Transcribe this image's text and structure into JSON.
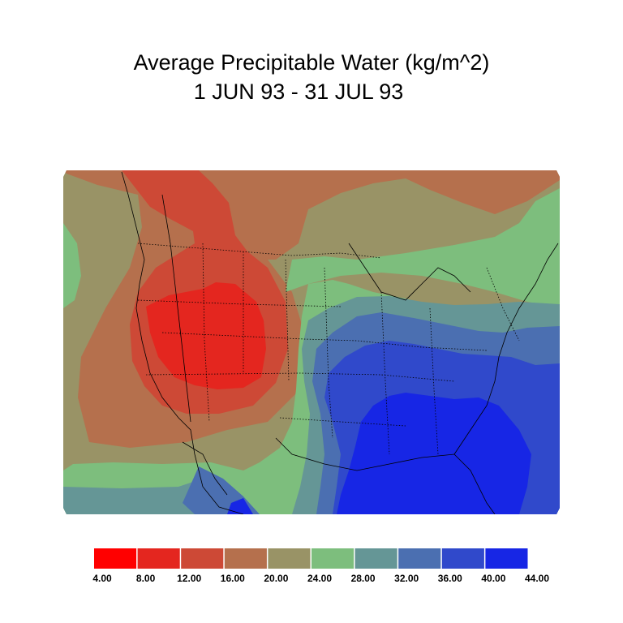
{
  "title": {
    "line1": "Average Precipitable Water (kg/m^2)",
    "line2": "1 JUN 93 - 31 JUL 93"
  },
  "colorbar": {
    "levels": [
      "4.00",
      "8.00",
      "12.00",
      "16.00",
      "20.00",
      "24.00",
      "28.00",
      "32.00",
      "36.00",
      "40.00",
      "44.00"
    ],
    "colors": [
      "#ff0000",
      "#e4261f",
      "#cd4936",
      "#b5704d",
      "#999366",
      "#7dbe7d",
      "#659696",
      "#4b6fb1",
      "#3049cb",
      "#1726e5"
    ]
  },
  "map_colors": {
    "band_16": "#b5704d",
    "band_12": "#cd4936",
    "band_8": "#e4261f",
    "band_20": "#999366",
    "band_24": "#7dbe7d",
    "band_28": "#659696",
    "band_32": "#4b6fb1",
    "band_36": "#3049cb",
    "band_40": "#1726e5"
  }
}
